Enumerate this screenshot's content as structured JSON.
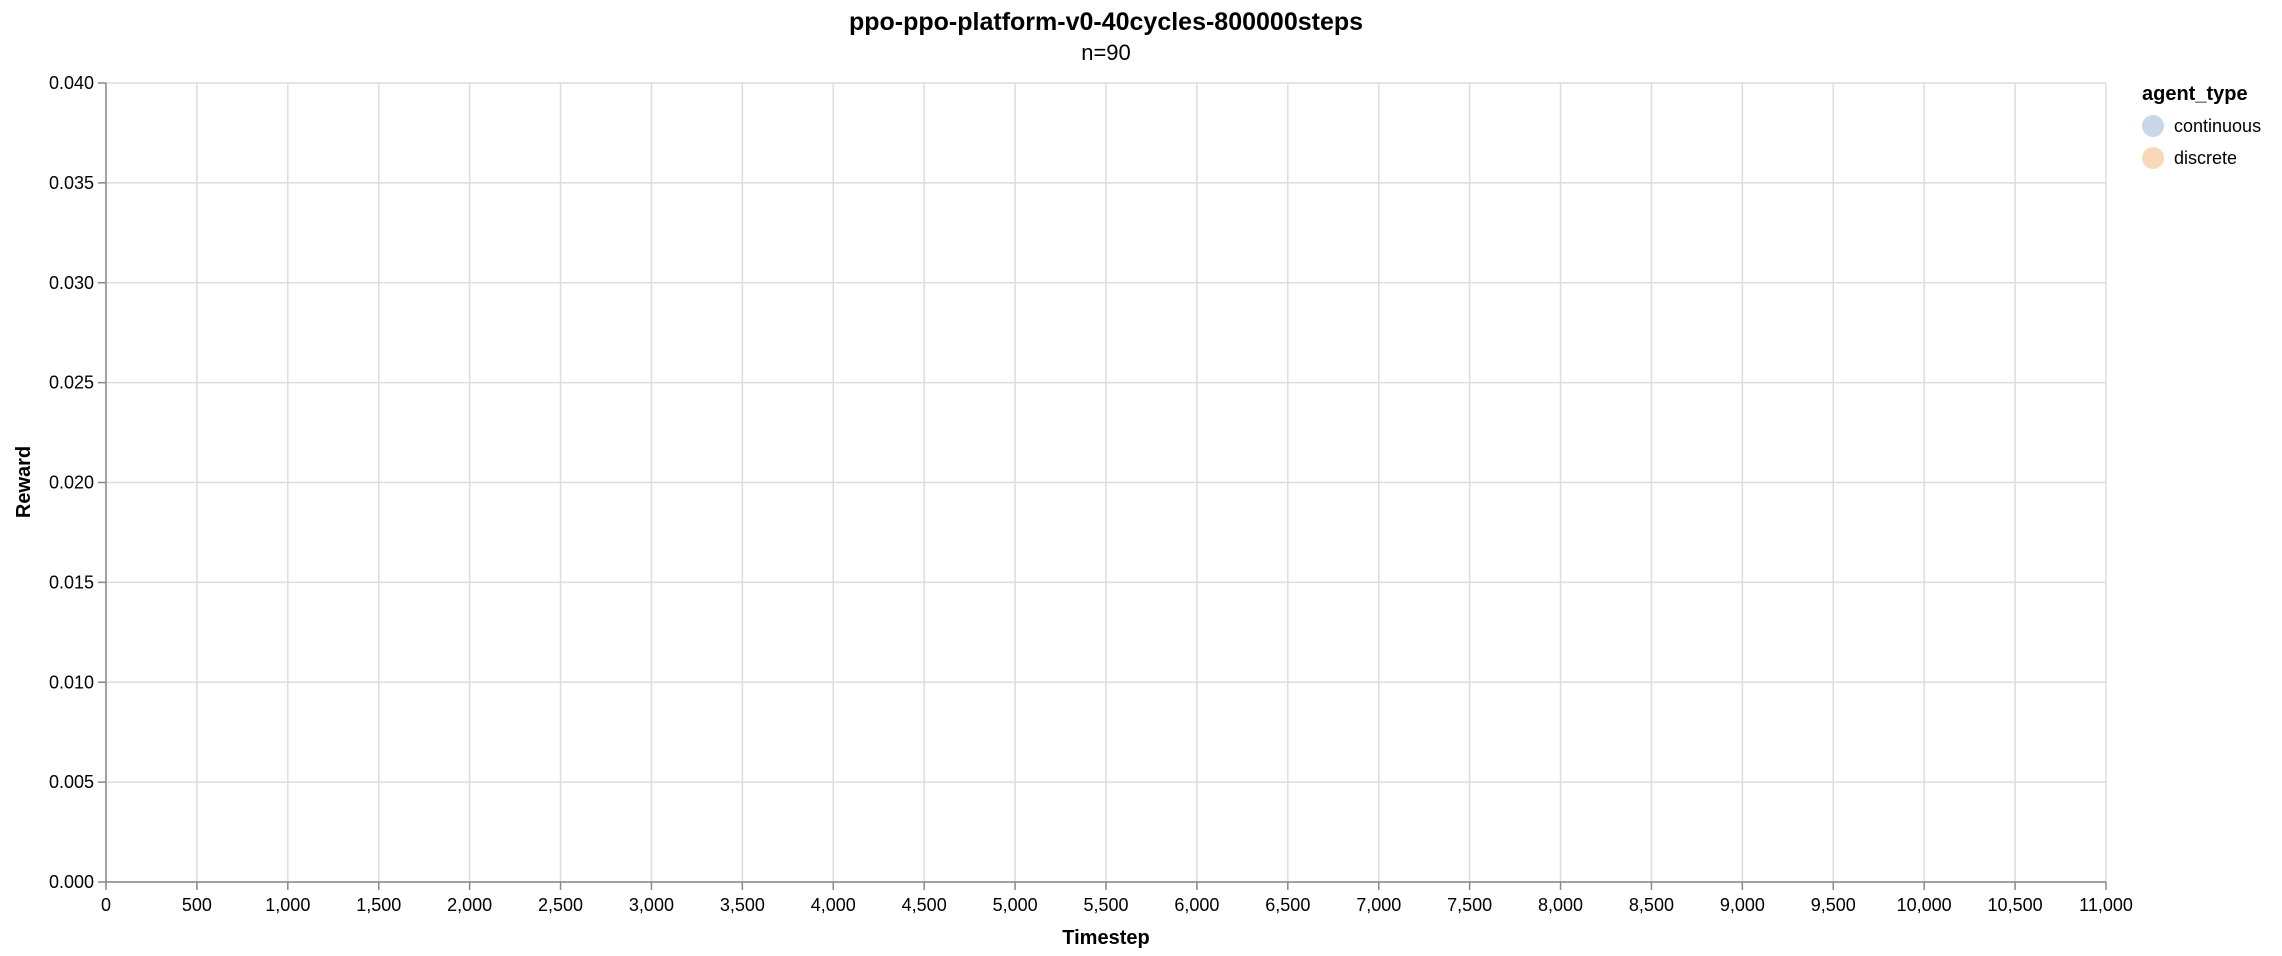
{
  "chart_data": {
    "type": "line",
    "title": "ppo-ppo-platform-v0-40cycles-800000steps",
    "subtitle": "n=90",
    "xlabel": "Timestep",
    "ylabel": "Reward",
    "xlim": [
      0,
      11000
    ],
    "ylim": [
      0,
      0.04
    ],
    "x_ticks": [
      0,
      500,
      1000,
      1500,
      2000,
      2500,
      3000,
      3500,
      4000,
      4500,
      5000,
      5500,
      6000,
      6500,
      7000,
      7500,
      8000,
      8500,
      9000,
      9500,
      10000,
      10500,
      11000
    ],
    "x_tick_labels": [
      "0",
      "500",
      "1,000",
      "1,500",
      "2,000",
      "2,500",
      "3,000",
      "3,500",
      "4,000",
      "4,500",
      "5,000",
      "5,500",
      "6,000",
      "6,500",
      "7,000",
      "7,500",
      "8,000",
      "8,500",
      "9,000",
      "9,500",
      "10,000",
      "10,500",
      "11,000"
    ],
    "y_ticks": [
      0,
      0.005,
      0.01,
      0.015,
      0.02,
      0.025,
      0.03,
      0.035,
      0.04
    ],
    "y_tick_labels": [
      "0.000",
      "0.005",
      "0.010",
      "0.015",
      "0.020",
      "0.025",
      "0.030",
      "0.035",
      "0.040"
    ],
    "grid": true,
    "legend": {
      "title": "agent_type",
      "position": "top-right",
      "entries": [
        {
          "name": "continuous",
          "color": "#c8d8e8"
        },
        {
          "name": "discrete",
          "color": "#f9d8b8"
        }
      ]
    },
    "series": [
      {
        "name": "continuous",
        "color": "#c8d8e8",
        "x": [],
        "y": []
      },
      {
        "name": "discrete",
        "color": "#f9d8b8",
        "x": [],
        "y": []
      }
    ]
  }
}
